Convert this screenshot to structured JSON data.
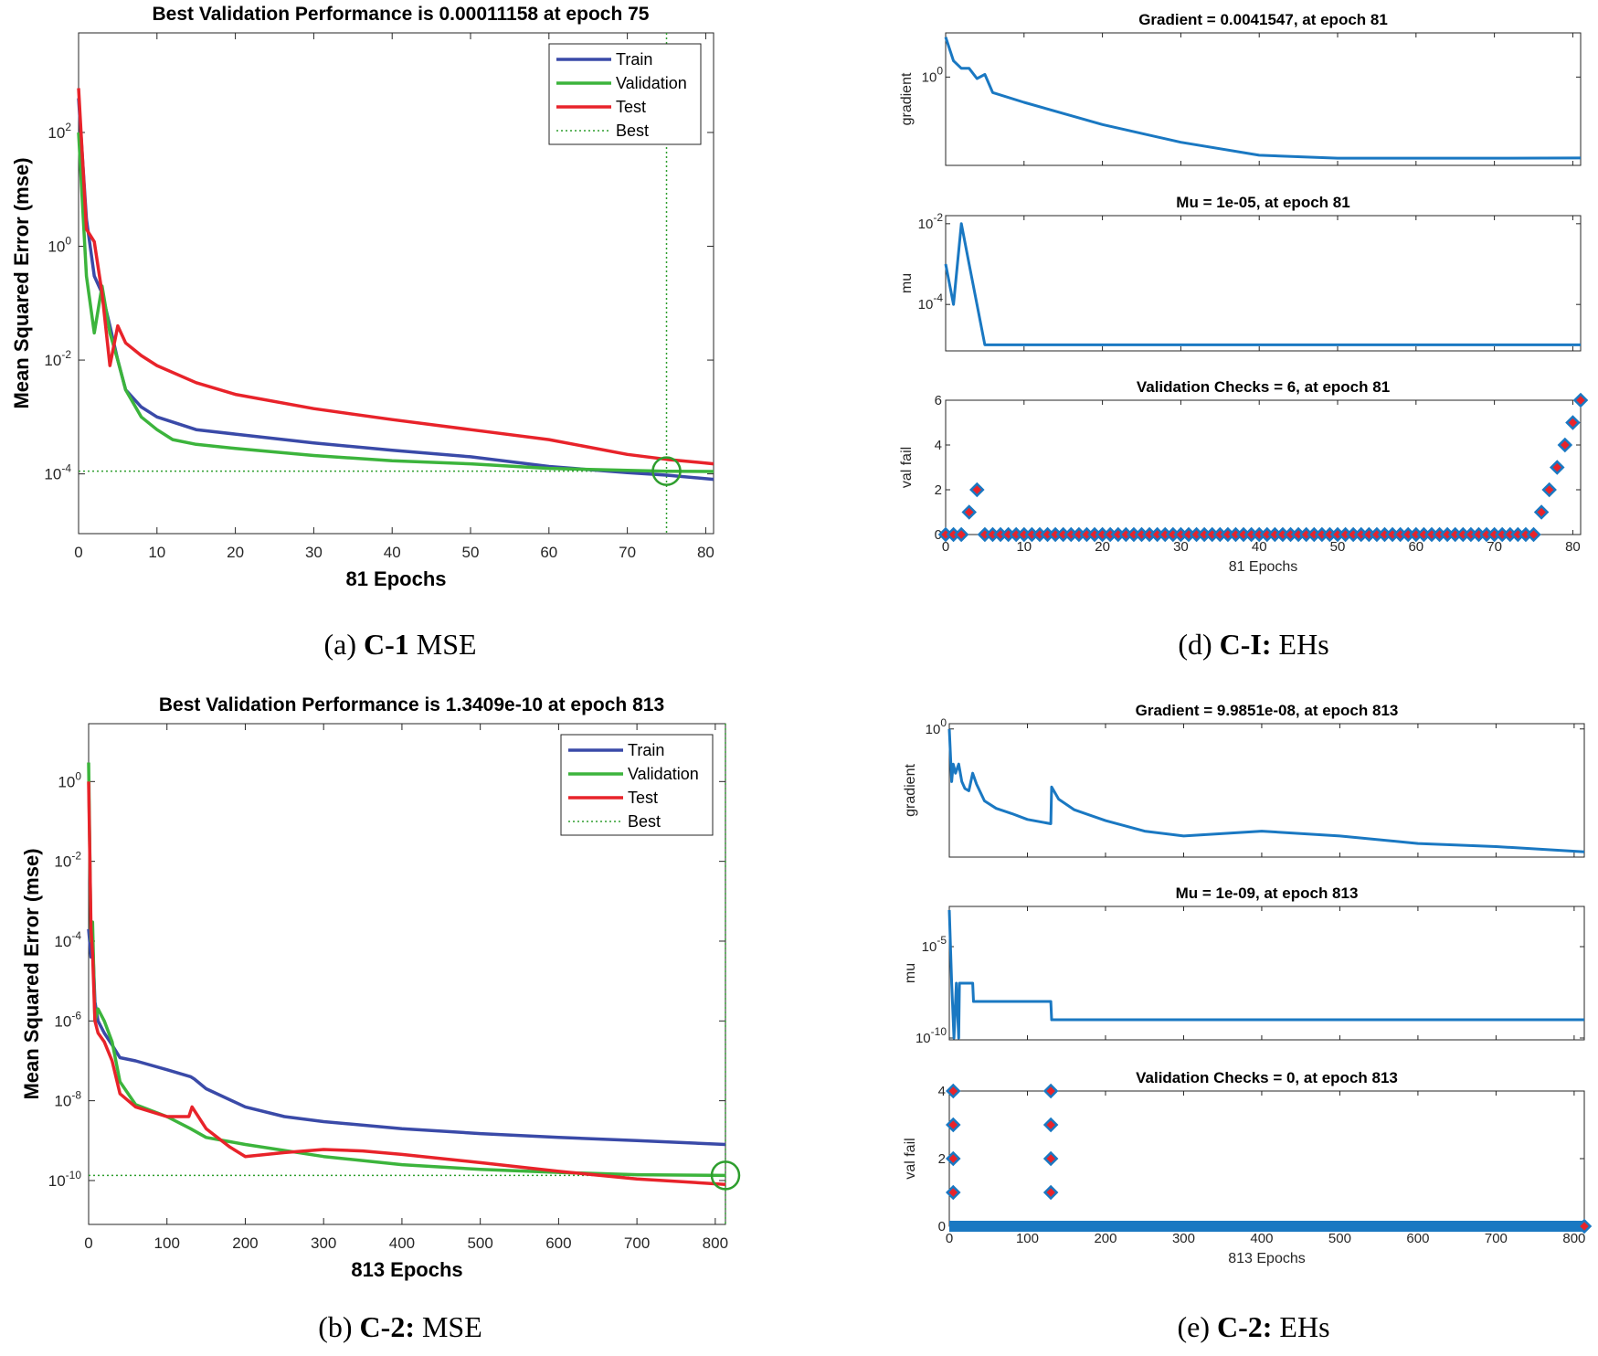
{
  "captions": {
    "a": {
      "prefix": "(a) ",
      "bold": "C-1",
      "suffix": " MSE"
    },
    "b": {
      "prefix": "(b) ",
      "bold": "C-2:",
      "suffix": " MSE"
    },
    "d": {
      "prefix": "(d) ",
      "bold": "C-I:",
      "suffix": " EHs"
    },
    "e": {
      "prefix": "(e) ",
      "bold": "C-2:",
      "suffix": " EHs"
    }
  },
  "colors": {
    "train": "#3a4aa8",
    "validation": "#3cb43c",
    "test": "#e8232a",
    "best": "#2e9e2e",
    "ehs_line": "#1a78c2",
    "marker_edge": "#1a78c2",
    "marker_fill": "#e8232a"
  },
  "chart_data": [
    {
      "id": "a",
      "type": "line",
      "yscale": "log",
      "title": "Best Validation Performance is 0.00011158 at epoch 75",
      "xlabel": "81 Epochs",
      "ylabel": "Mean Squared Error  (mse)",
      "xlim": [
        0,
        81
      ],
      "ylim_exp": [
        -5.05,
        3.75
      ],
      "xticks": [
        0,
        10,
        20,
        30,
        40,
        50,
        60,
        70,
        80
      ],
      "yticks_exp": [
        -4,
        -2,
        0,
        2
      ],
      "legend": [
        "Train",
        "Validation",
        "Test",
        "Best"
      ],
      "legend_position": "top-right",
      "best": {
        "epoch": 75,
        "value": 0.00011158
      },
      "series": [
        {
          "name": "Train",
          "x": [
            0,
            1,
            2,
            3,
            4,
            5,
            6,
            8,
            10,
            15,
            20,
            30,
            40,
            50,
            60,
            70,
            75,
            81
          ],
          "y": [
            400,
            3,
            0.3,
            0.15,
            0.04,
            0.01,
            0.003,
            0.0015,
            0.001,
            0.0006,
            0.0005,
            0.00035,
            0.00026,
            0.0002,
            0.000135,
            0.000105,
            9.5e-05,
            8e-05
          ]
        },
        {
          "name": "Validation",
          "x": [
            0,
            1,
            2,
            3,
            4,
            5,
            6,
            8,
            10,
            12,
            15,
            20,
            30,
            40,
            50,
            60,
            70,
            75,
            81
          ],
          "y": [
            100,
            0.3,
            0.03,
            0.2,
            0.03,
            0.01,
            0.003,
            0.001,
            0.0006,
            0.0004,
            0.00033,
            0.00028,
            0.00021,
            0.00017,
            0.00015,
            0.000125,
            0.000115,
            0.00011158,
            0.00011
          ]
        },
        {
          "name": "Test",
          "x": [
            0,
            1,
            2,
            3,
            4,
            5,
            6,
            8,
            10,
            15,
            20,
            30,
            40,
            50,
            60,
            70,
            75,
            81
          ],
          "y": [
            600,
            2,
            1.2,
            0.15,
            0.008,
            0.04,
            0.02,
            0.012,
            0.008,
            0.004,
            0.0025,
            0.0014,
            0.0009,
            0.0006,
            0.0004,
            0.00022,
            0.00018,
            0.00015
          ]
        }
      ]
    },
    {
      "id": "b",
      "type": "line",
      "yscale": "log",
      "title": "Best Validation Performance is 1.3409e-10 at epoch 813",
      "xlabel": "813 Epochs",
      "ylabel": "Mean Squared Error  (mse)",
      "xlim": [
        0,
        813
      ],
      "ylim_exp": [
        -11.1,
        1.45
      ],
      "xticks": [
        0,
        100,
        200,
        300,
        400,
        500,
        600,
        700,
        800
      ],
      "yticks_exp": [
        -10,
        -8,
        -6,
        -4,
        -2,
        0
      ],
      "legend": [
        "Train",
        "Validation",
        "Test",
        "Best"
      ],
      "legend_position": "top-right",
      "best": {
        "epoch": 813,
        "value": 1.3409e-10
      },
      "series": [
        {
          "name": "Train",
          "x": [
            0,
            3,
            5,
            8,
            12,
            20,
            30,
            40,
            60,
            100,
            130,
            135,
            150,
            200,
            250,
            300,
            400,
            500,
            600,
            700,
            813
          ],
          "y": [
            0.0002,
            4e-05,
            0.0001,
            3e-06,
            1e-06,
            5e-07,
            2.5e-07,
            1.2e-07,
            1e-07,
            6e-08,
            4e-08,
            3.5e-08,
            2e-08,
            7e-09,
            4e-09,
            3e-09,
            2e-09,
            1.5e-09,
            1.2e-09,
            1e-09,
            8e-10
          ]
        },
        {
          "name": "Validation",
          "x": [
            0,
            3,
            5,
            8,
            12,
            20,
            30,
            40,
            60,
            100,
            130,
            150,
            200,
            300,
            400,
            500,
            600,
            700,
            813
          ],
          "y": [
            3,
            0.0001,
            0.0003,
            1e-06,
            2e-06,
            1e-06,
            3e-07,
            3e-08,
            8e-09,
            4e-09,
            2e-09,
            1.2e-09,
            8e-10,
            4e-10,
            2.5e-10,
            1.9e-10,
            1.6e-10,
            1.4e-10,
            1.3409e-10
          ]
        },
        {
          "name": "Test",
          "x": [
            0,
            3,
            5,
            8,
            12,
            20,
            30,
            40,
            60,
            100,
            128,
            132,
            150,
            180,
            200,
            250,
            300,
            350,
            400,
            500,
            600,
            700,
            813
          ],
          "y": [
            1,
            0.0002,
            5e-05,
            1e-06,
            5e-07,
            3e-07,
            1e-07,
            1.5e-08,
            7e-09,
            4e-09,
            4e-09,
            7e-09,
            2e-09,
            7e-10,
            4e-10,
            5e-10,
            6e-10,
            5.5e-10,
            4.5e-10,
            2.8e-10,
            1.7e-10,
            1.1e-10,
            8e-11
          ]
        }
      ]
    },
    {
      "id": "d",
      "type": "panel_stack",
      "xlim": [
        0,
        81
      ],
      "xticks": [
        0,
        10,
        20,
        30,
        40,
        50,
        60,
        70,
        80
      ],
      "xlabel": "81 Epochs",
      "panels": [
        {
          "title": "Gradient = 0.0041547, at epoch 81",
          "ylabel": "gradient",
          "type": "line",
          "yscale": "log",
          "ylim_exp": [
            -2.6,
            1.3
          ],
          "yticks_exp": [
            0
          ],
          "x": [
            0,
            1,
            2,
            3,
            4,
            5,
            6,
            10,
            20,
            30,
            40,
            50,
            60,
            70,
            81
          ],
          "y": [
            15,
            3,
            1.8,
            1.8,
            0.9,
            1.2,
            0.35,
            0.18,
            0.04,
            0.012,
            0.005,
            0.0041,
            0.0041,
            0.0041,
            0.0041547
          ]
        },
        {
          "title": "Mu = 1e-05, at epoch 81",
          "ylabel": "mu",
          "type": "line",
          "yscale": "log",
          "ylim_exp": [
            -5.15,
            -1.8
          ],
          "yticks_exp": [
            -4,
            -2
          ],
          "x": [
            0,
            1,
            2,
            3,
            4,
            5,
            81
          ],
          "y": [
            0.001,
            0.0001,
            0.01,
            0.001,
            0.0001,
            1e-05,
            1e-05
          ]
        },
        {
          "title": "Validation Checks = 6, at epoch 81",
          "ylabel": "val fail",
          "type": "markers",
          "ylim": [
            0,
            6
          ],
          "yticks": [
            0,
            2,
            4,
            6
          ],
          "x": [
            0,
            1,
            2,
            3,
            4,
            5,
            6,
            7,
            8,
            9,
            10,
            11,
            12,
            13,
            14,
            15,
            16,
            17,
            18,
            19,
            20,
            21,
            22,
            23,
            24,
            25,
            26,
            27,
            28,
            29,
            30,
            31,
            32,
            33,
            34,
            35,
            36,
            37,
            38,
            39,
            40,
            41,
            42,
            43,
            44,
            45,
            46,
            47,
            48,
            49,
            50,
            51,
            52,
            53,
            54,
            55,
            56,
            57,
            58,
            59,
            60,
            61,
            62,
            63,
            64,
            65,
            66,
            67,
            68,
            69,
            70,
            71,
            72,
            73,
            74,
            75,
            76,
            77,
            78,
            79,
            80,
            81
          ],
          "y": [
            0,
            0,
            0,
            1,
            2,
            0,
            0,
            0,
            0,
            0,
            0,
            0,
            0,
            0,
            0,
            0,
            0,
            0,
            0,
            0,
            0,
            0,
            0,
            0,
            0,
            0,
            0,
            0,
            0,
            0,
            0,
            0,
            0,
            0,
            0,
            0,
            0,
            0,
            0,
            0,
            0,
            0,
            0,
            0,
            0,
            0,
            0,
            0,
            0,
            0,
            0,
            0,
            0,
            0,
            0,
            0,
            0,
            0,
            0,
            0,
            0,
            0,
            0,
            0,
            0,
            0,
            0,
            0,
            0,
            0,
            0,
            0,
            0,
            0,
            0,
            0,
            1,
            2,
            3,
            4,
            5,
            6
          ]
        }
      ]
    },
    {
      "id": "e",
      "type": "panel_stack",
      "xlim": [
        0,
        813
      ],
      "xticks": [
        0,
        100,
        200,
        300,
        400,
        500,
        600,
        700,
        800
      ],
      "xlabel": "813 Epochs",
      "panels": [
        {
          "title": "Gradient = 9.9851e-08, at epoch 813",
          "ylabel": "gradient",
          "type": "line",
          "yscale": "log",
          "ylim_exp": [
            -7.3,
            0.3
          ],
          "yticks_exp": [
            0
          ],
          "x": [
            0,
            3,
            5,
            8,
            12,
            16,
            20,
            25,
            30,
            35,
            45,
            60,
            80,
            100,
            130,
            131,
            140,
            160,
            200,
            250,
            300,
            400,
            500,
            600,
            700,
            813
          ],
          "y": [
            1,
            0.001,
            0.01,
            0.003,
            0.01,
            0.001,
            0.0004,
            0.0003,
            0.003,
            0.0007,
            8e-05,
            3e-05,
            1.5e-05,
            7e-06,
            4e-06,
            0.0005,
            0.0001,
            2.5e-05,
            6e-06,
            1.5e-06,
            8e-07,
            1.5e-06,
            8e-07,
            3e-07,
            2e-07,
            9.9851e-08
          ]
        },
        {
          "title": "Mu = 1e-09, at epoch 813",
          "ylabel": "mu",
          "type": "line",
          "yscale": "log",
          "ylim_exp": [
            -10.1,
            -2.8
          ],
          "yticks_exp": [
            -10,
            -5
          ],
          "x": [
            0,
            3,
            6,
            9,
            10,
            12,
            13,
            30,
            31,
            130,
            131,
            813
          ],
          "y": [
            0.001,
            1e-07,
            1e-10,
            1e-07,
            1e-08,
            1e-10,
            1e-07,
            1e-07,
            1e-08,
            1e-08,
            1e-09,
            1e-09
          ]
        },
        {
          "title": "Validation Checks = 0, at epoch 813",
          "ylabel": "val fail",
          "type": "markers",
          "ylim": [
            0,
            4
          ],
          "yticks": [
            0,
            2,
            4
          ],
          "x": [
            5,
            5,
            5,
            5,
            130,
            130,
            130,
            130,
            813
          ],
          "y": [
            1,
            2,
            3,
            4,
            1,
            2,
            3,
            4,
            0
          ],
          "dense_zero": true
        }
      ]
    }
  ]
}
